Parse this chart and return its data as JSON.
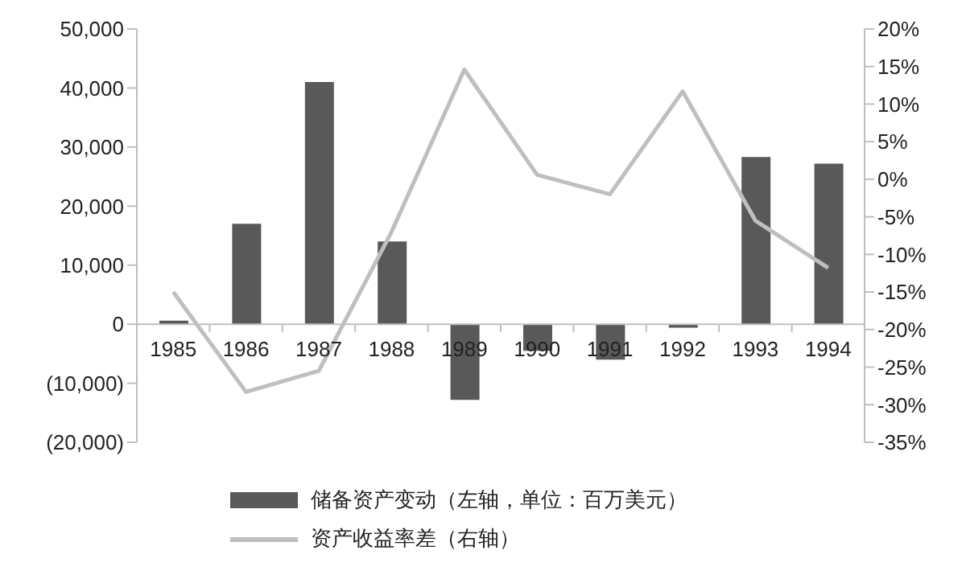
{
  "chart_data": {
    "type": "bar",
    "categories": [
      "1985",
      "1986",
      "1987",
      "1988",
      "1989",
      "1990",
      "1991",
      "1992",
      "1993",
      "1994"
    ],
    "series": [
      {
        "name": "储备资产变动（左轴，单位：百万美元）",
        "color": "#595959",
        "values": [
          600,
          17000,
          41000,
          14000,
          -12800,
          -4500,
          -6000,
          -600,
          28300,
          27200
        ]
      },
      {
        "name": "资产收益率差（右轴）",
        "type": "line",
        "axis": "y2",
        "color": "#bfbfbf",
        "values": [
          -15,
          -28.3,
          -25.5,
          -7,
          14.6,
          0.6,
          -2,
          11.7,
          -5.5,
          -11.8
        ]
      }
    ],
    "ylim": [
      -20000,
      50000
    ],
    "yticks": [
      {
        "value": -20000,
        "label": "(20,000)"
      },
      {
        "value": -10000,
        "label": "(10,000)"
      },
      {
        "value": 0,
        "label": "0"
      },
      {
        "value": 10000,
        "label": "10,000"
      },
      {
        "value": 20000,
        "label": "20,000"
      },
      {
        "value": 30000,
        "label": "30,000"
      },
      {
        "value": 40000,
        "label": "40,000"
      },
      {
        "value": 50000,
        "label": "50,000"
      }
    ],
    "y2lim": [
      -35,
      20
    ],
    "y2ticks": [
      {
        "value": -35,
        "label": "-35%"
      },
      {
        "value": -30,
        "label": "-30%"
      },
      {
        "value": -25,
        "label": "-25%"
      },
      {
        "value": -20,
        "label": "-20%"
      },
      {
        "value": -15,
        "label": "-15%"
      },
      {
        "value": -10,
        "label": "-10%"
      },
      {
        "value": -5,
        "label": "-5%"
      },
      {
        "value": 0,
        "label": "0%"
      },
      {
        "value": 5,
        "label": "5%"
      },
      {
        "value": 10,
        "label": "10%"
      },
      {
        "value": 15,
        "label": "15%"
      },
      {
        "value": 20,
        "label": "20%"
      }
    ],
    "grid": false,
    "legend": "bottom",
    "marker": "none",
    "line_style": "solid"
  }
}
